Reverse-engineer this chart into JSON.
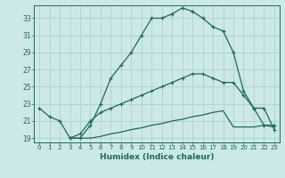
{
  "xlabel": "Humidex (Indice chaleur)",
  "xlim": [
    -0.5,
    23.5
  ],
  "ylim": [
    18.5,
    34.5
  ],
  "yticks": [
    19,
    21,
    23,
    25,
    27,
    29,
    31,
    33
  ],
  "xticks": [
    0,
    1,
    2,
    3,
    4,
    5,
    6,
    7,
    8,
    9,
    10,
    11,
    12,
    13,
    14,
    15,
    16,
    17,
    18,
    19,
    20,
    21,
    22,
    23
  ],
  "bg_color": "#cce8e8",
  "line_color": "#1a6b5a",
  "grid_color": "#aacccc",
  "line1_x": [
    0,
    1,
    2,
    3,
    4,
    5,
    6,
    7,
    8,
    9,
    10,
    11,
    12,
    13,
    14,
    15,
    16,
    17,
    18,
    19,
    20,
    21,
    22,
    23
  ],
  "line1_y": [
    22.5,
    21.5,
    21.0,
    19.0,
    19.0,
    20.5,
    23.0,
    26.0,
    27.5,
    29.0,
    31.0,
    33.0,
    33.0,
    33.5,
    34.2,
    33.8,
    33.0,
    32.0,
    31.5,
    29.0,
    24.5,
    22.5,
    20.5,
    20.5
  ],
  "line2_x": [
    3,
    4,
    5,
    6,
    7,
    8,
    9,
    10,
    11,
    12,
    13,
    14,
    15,
    16,
    17,
    18,
    19,
    20,
    21,
    22,
    23
  ],
  "line2_y": [
    19.0,
    19.5,
    21.0,
    22.0,
    22.5,
    23.0,
    23.5,
    24.0,
    24.5,
    25.0,
    25.5,
    26.0,
    26.5,
    26.5,
    26.0,
    25.5,
    25.5,
    24.0,
    22.5,
    22.5,
    20.0
  ],
  "line3_x": [
    3,
    4,
    5,
    6,
    7,
    8,
    9,
    10,
    11,
    12,
    13,
    14,
    15,
    16,
    17,
    18,
    19,
    20,
    21,
    22,
    23
  ],
  "line3_y": [
    19.0,
    19.0,
    19.0,
    19.2,
    19.5,
    19.7,
    20.0,
    20.2,
    20.5,
    20.7,
    21.0,
    21.2,
    21.5,
    21.7,
    22.0,
    22.2,
    20.3,
    20.3,
    20.3,
    20.5,
    20.3
  ]
}
